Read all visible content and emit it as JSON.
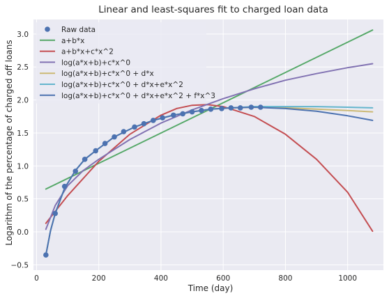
{
  "chart_data": {
    "type": "line",
    "title": "Linear and least-squares fit to charged loan data",
    "xlabel": "Time (day)",
    "ylabel": "Logarithm of the percentage of charged off loans",
    "xlim": [
      -10,
      1115
    ],
    "ylim": [
      -0.58,
      3.22
    ],
    "xticks": [
      0,
      200,
      400,
      600,
      800,
      1000
    ],
    "yticks": [
      -0.5,
      0.0,
      0.5,
      1.0,
      1.5,
      2.0,
      2.5,
      3.0
    ],
    "xtick_labels": [
      "0",
      "200",
      "400",
      "600",
      "800",
      "1000"
    ],
    "ytick_labels": [
      "−0.5",
      "0.0",
      "0.5",
      "1.0",
      "1.5",
      "2.0",
      "2.5",
      "3.0"
    ],
    "grid": true,
    "background": "#eaeaf2",
    "legend_position": "top-left",
    "series": [
      {
        "name": "Raw data",
        "kind": "points",
        "color": "#4c72b0",
        "x": [
          30,
          60,
          90,
          125,
          155,
          190,
          220,
          250,
          280,
          315,
          345,
          375,
          405,
          440,
          470,
          500,
          530,
          560,
          595,
          625,
          655,
          690,
          720
        ],
        "y": [
          -0.35,
          0.28,
          0.69,
          0.92,
          1.1,
          1.23,
          1.34,
          1.44,
          1.52,
          1.59,
          1.64,
          1.69,
          1.73,
          1.77,
          1.79,
          1.82,
          1.84,
          1.86,
          1.87,
          1.88,
          1.88,
          1.89,
          1.89
        ]
      },
      {
        "name": "a+b*x",
        "kind": "line",
        "color": "#55a868",
        "x": [
          30,
          1080
        ],
        "y": [
          0.65,
          3.06
        ]
      },
      {
        "name": "a+b*x+c*x^2",
        "kind": "line",
        "color": "#c44e52",
        "x": [
          30,
          100,
          200,
          300,
          400,
          450,
          500,
          550,
          600,
          700,
          800,
          900,
          1000,
          1080
        ],
        "y": [
          0.13,
          0.55,
          1.07,
          1.48,
          1.77,
          1.87,
          1.92,
          1.93,
          1.9,
          1.75,
          1.48,
          1.1,
          0.6,
          0.01
        ]
      },
      {
        "name": "log(a*x+b)+c*x^0",
        "kind": "line",
        "color": "#8172b2",
        "x": [
          30,
          60,
          100,
          150,
          200,
          300,
          400,
          500,
          600,
          700,
          800,
          900,
          1000,
          1080
        ],
        "y": [
          0.04,
          0.4,
          0.7,
          0.93,
          1.1,
          1.4,
          1.65,
          1.85,
          2.02,
          2.17,
          2.3,
          2.4,
          2.49,
          2.55
        ]
      },
      {
        "name": "log(a*x+b)+c*x^0 + d*x",
        "kind": "line",
        "color": "#ccb974",
        "x": [
          30,
          45,
          60,
          90,
          125,
          155,
          190,
          250,
          315,
          375,
          440,
          500,
          560,
          625,
          700,
          800,
          900,
          1000,
          1080
        ],
        "y": [
          -0.35,
          0.02,
          0.28,
          0.66,
          0.93,
          1.1,
          1.23,
          1.44,
          1.59,
          1.69,
          1.77,
          1.82,
          1.86,
          1.88,
          1.89,
          1.88,
          1.86,
          1.84,
          1.82
        ]
      },
      {
        "name": "log(a*x+b)+c*x^0 + d*x+e*x^2",
        "kind": "line",
        "color": "#64b5cd",
        "x": [
          30,
          45,
          60,
          90,
          125,
          155,
          190,
          250,
          315,
          375,
          440,
          500,
          560,
          625,
          700,
          800,
          900,
          1000,
          1080
        ],
        "y": [
          -0.35,
          0.02,
          0.28,
          0.66,
          0.93,
          1.1,
          1.23,
          1.44,
          1.59,
          1.69,
          1.77,
          1.82,
          1.86,
          1.88,
          1.9,
          1.9,
          1.9,
          1.89,
          1.88
        ]
      },
      {
        "name": "log(a*x+b)+c*x^0 + d*x+e*x^2 + f*x^3",
        "kind": "line",
        "color": "#4c72b0",
        "x": [
          30,
          45,
          60,
          90,
          125,
          155,
          190,
          250,
          315,
          375,
          440,
          500,
          560,
          625,
          700,
          800,
          900,
          1000,
          1080
        ],
        "y": [
          -0.35,
          0.02,
          0.28,
          0.66,
          0.93,
          1.1,
          1.23,
          1.44,
          1.59,
          1.69,
          1.77,
          1.82,
          1.86,
          1.88,
          1.89,
          1.87,
          1.83,
          1.76,
          1.69
        ]
      }
    ]
  }
}
